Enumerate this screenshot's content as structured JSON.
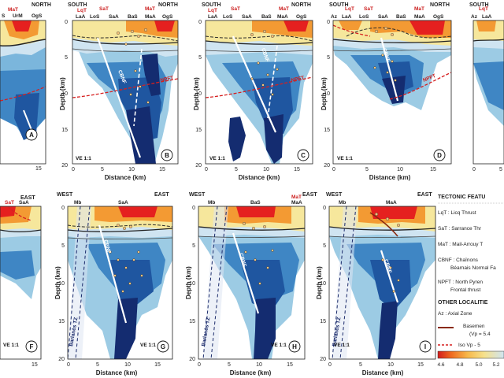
{
  "panels_top": [
    {
      "letter": "A",
      "left": "",
      "right": "NORTH",
      "regions": [
        "S",
        "UrM",
        "OgS"
      ],
      "faults": [
        "MaT"
      ],
      "ticks": [
        "15"
      ]
    },
    {
      "letter": "B",
      "left": "SOUTH",
      "right": "NORTH",
      "regions": [
        "LaA",
        "LoS",
        "SaA",
        "BaS",
        "MaA",
        "OgS"
      ],
      "faults": [
        "LqT",
        "SaT",
        "MaT",
        "CBNF",
        "NPFT"
      ],
      "ticks": [
        "0",
        "5",
        "10",
        "15"
      ]
    },
    {
      "letter": "C",
      "left": "SOUTH",
      "right": "NORTH",
      "regions": [
        "LaA",
        "LoS",
        "SaA",
        "BaS",
        "MaA",
        "OgS"
      ],
      "faults": [
        "LqT",
        "SaT",
        "MaT",
        "CBNF",
        "NPFT"
      ],
      "ticks": [
        "0",
        "5",
        "10",
        "15"
      ]
    },
    {
      "letter": "D",
      "left": "SOUTH",
      "right": "NORTH",
      "regions": [
        "Az",
        "LaA",
        "LoS",
        "SaA",
        "BaS",
        "MaA",
        "OgS"
      ],
      "faults": [
        "LqT",
        "SaT",
        "MaT",
        "CBNF",
        "NPFT"
      ],
      "ticks": [
        "0",
        "5",
        "10",
        "15"
      ]
    },
    {
      "letter": "",
      "left": "SOUTH",
      "right": "",
      "regions": [
        "Az",
        "LaA"
      ],
      "faults": [
        "LqT"
      ],
      "ticks": [
        "0",
        "5"
      ]
    }
  ],
  "panels_bottom": [
    {
      "letter": "F",
      "left": "",
      "right": "EAST",
      "regions": [
        "SaA"
      ],
      "faults": [
        "SaT"
      ],
      "ticks": [
        "15"
      ]
    },
    {
      "letter": "G",
      "left": "WEST",
      "right": "EAST",
      "regions": [
        "Mb",
        "SaA"
      ],
      "faults": [
        "CBNF"
      ],
      "ticks": [
        "0",
        "5",
        "10",
        "15"
      ],
      "barlabel": "Barlanès TZ"
    },
    {
      "letter": "H",
      "left": "WEST",
      "right": "EAST",
      "regions": [
        "Mb",
        "BaS",
        "MaA"
      ],
      "faults": [
        "MaT",
        "CBNF"
      ],
      "ticks": [
        "0",
        "5",
        "10",
        "15"
      ],
      "barlabel": "Barlanès TZ"
    },
    {
      "letter": "I",
      "left": "WEST",
      "right": "EAST",
      "regions": [
        "Mb",
        "MaA"
      ],
      "faults": [
        "CBNF"
      ],
      "ticks": [
        "0",
        "5",
        "10",
        "15"
      ],
      "barlabel": "Barlanès TZ"
    }
  ],
  "depth_label": "Depth (km)",
  "depth_ticks": [
    "0",
    "5",
    "10",
    "15",
    "20"
  ],
  "distance_label": "Distance (km)",
  "ve": "VE 1:1",
  "legend": {
    "title": "TECTONIC FEATU",
    "items": [
      "LqT : Licq Thrust",
      "SaT : Sarrance Thr",
      "MaT : Mail-Arrouy T",
      "CBNF : Chaînons",
      "Béarnais Normal Fa",
      "NPFT : North Pyren",
      "Frontal thrust"
    ],
    "other_title": "OTHER LOCALITIE",
    "other_items": [
      "Az : Axial Zone"
    ],
    "basement": "Basemen",
    "basement_sub": "(Vp = 5.4",
    "iso": "Iso Vp - 5"
  },
  "colorbar": {
    "ticks": [
      "4.6",
      "4.8",
      "5.0",
      "5.2"
    ],
    "colors": [
      "#e8141c",
      "#f3731f",
      "#f9b24a",
      "#f8e08a",
      "#d8eaf3",
      "#9ccbe4"
    ]
  },
  "colors": {
    "yellow": "#f6e79c",
    "orange": "#f39a33",
    "red": "#e5201f",
    "ltblue": "#cfe4f1",
    "blue1": "#7bb6dc",
    "blue2": "#3f86c4",
    "blue3": "#1f56a0",
    "navy": "#142c70",
    "fault": "#d62020"
  }
}
